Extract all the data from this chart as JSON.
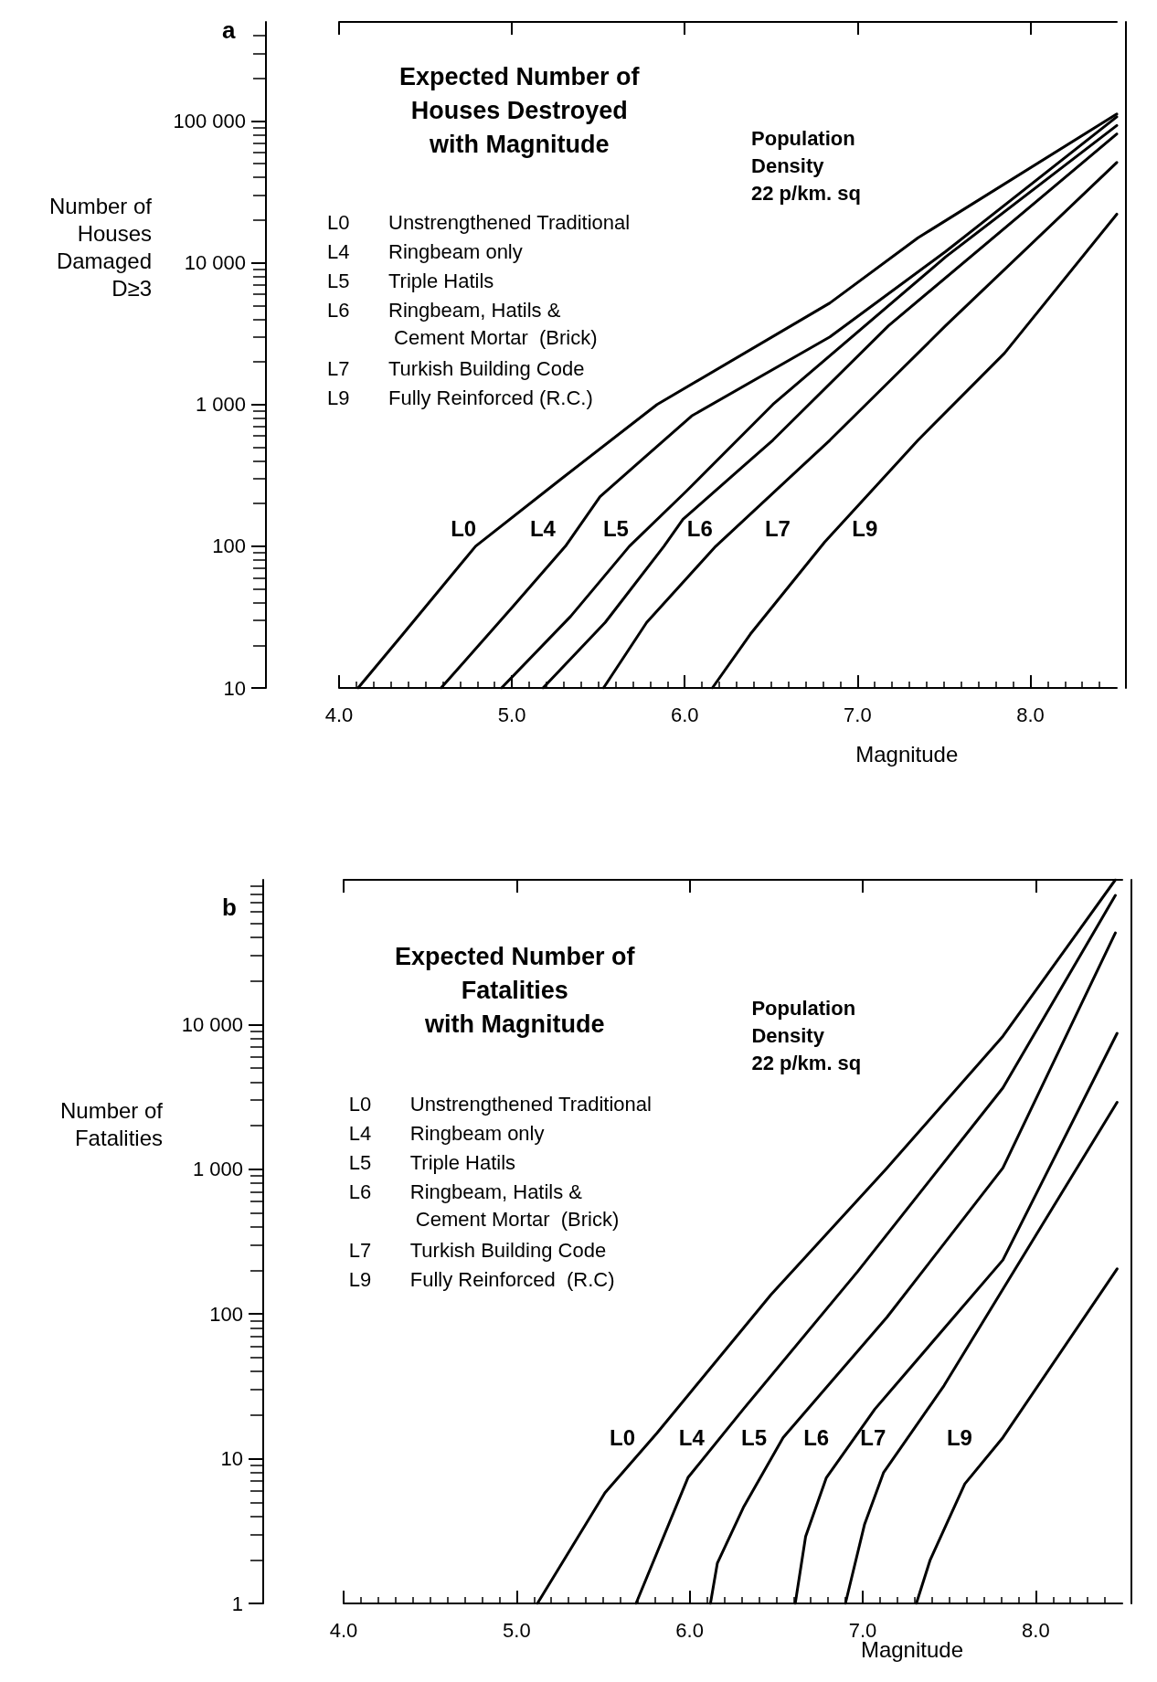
{
  "chart_data": [
    {
      "type": "line",
      "title": "Expected Number of\nHouses Destroyed\nwith Magnitude",
      "xlabel": "Magnitude",
      "ylabel": "Number of\nHouses\nDamaged\nD≥3",
      "log": "y",
      "grid": false,
      "marker": "none",
      "line_style": "solid",
      "xlim": [
        4,
        8.5
      ],
      "ylim": [
        10,
        500000
      ],
      "xticks": [
        {
          "value": 4,
          "label": "4.0"
        },
        {
          "value": 5,
          "label": "5.0"
        },
        {
          "value": 6,
          "label": "6.0"
        },
        {
          "value": 7,
          "label": "7.0"
        },
        {
          "value": 8,
          "label": "8.0"
        }
      ],
      "yticks": [
        10,
        100,
        {
          "value": 1000,
          "label": "1 000"
        },
        {
          "value": 10000,
          "label": "10 000"
        },
        {
          "value": 100000,
          "label": "100 000"
        }
      ],
      "series": [
        {
          "color": "#000000",
          "x": [
            4.11,
            4.37,
            4.79,
            5.28,
            5.84,
            6.84,
            7.35,
            8.5
          ],
          "values": [
            10,
            24,
            100,
            295,
            1000,
            5200,
            15000,
            112000
          ]
        },
        {
          "color": "#000000",
          "x": [
            4.59,
            5.01,
            5.31,
            5.51,
            6.04,
            6.84,
            7.51,
            8.5
          ],
          "values": [
            10,
            38,
            100,
            224,
            830,
            3000,
            12000,
            107000
          ]
        },
        {
          "color": "#000000",
          "x": [
            4.94,
            5.34,
            5.68,
            6.01,
            6.51,
            7.51,
            8.5
          ],
          "values": [
            10,
            32,
            100,
            245,
            1000,
            11000,
            93000
          ]
        },
        {
          "color": "#000000",
          "x": [
            5.18,
            5.54,
            5.88,
            5.99,
            6.51,
            7.18,
            8.5
          ],
          "values": [
            10,
            29,
            100,
            155,
            560,
            3600,
            81000
          ]
        },
        {
          "color": "#000000",
          "x": [
            5.53,
            5.78,
            6.18,
            6.84,
            7.51,
            8.5
          ],
          "values": [
            10,
            29,
            100,
            560,
            3600,
            51000
          ]
        },
        {
          "color": "#000000",
          "x": [
            6.16,
            6.38,
            6.81,
            7.35,
            7.85,
            8.5
          ],
          "values": [
            10,
            24,
            107,
            560,
            2300,
            22000
          ]
        }
      ],
      "annotations": [
        "a",
        "Population\nDensity\n22 p/km. sq",
        "L0 Unstrengthened Traditional",
        "L4 Ringbeam only",
        "L5 Triple Hatils",
        "L6 Ringbeam, Hatils &\n Cement Mortar  (Brick)",
        "L7 Turkish Building Code",
        "L9 Fully Reinforced (R.C.)",
        "L0",
        "L4",
        "L5",
        "L6",
        "L7",
        "L9"
      ]
    },
    {
      "type": "line",
      "title": "Expected Number of\nFatalities\nwith Magnitude",
      "xlabel": "Magnitude",
      "ylabel": "Number of\nFatalities",
      "log": "y",
      "grid": false,
      "marker": "none",
      "line_style": "solid",
      "xlim": [
        4,
        8.5
      ],
      "ylim": [
        1,
        100000
      ],
      "xticks": [
        {
          "value": 4,
          "label": "4.0"
        },
        {
          "value": 5,
          "label": "5.0"
        },
        {
          "value": 6,
          "label": "6.0"
        },
        {
          "value": 7,
          "label": "7.0"
        },
        {
          "value": 8,
          "label": "8.0"
        }
      ],
      "yticks": [
        1,
        10,
        100,
        {
          "value": 1000,
          "label": "1 000"
        },
        {
          "value": 10000,
          "label": "10 000"
        }
      ],
      "series": [
        {
          "color": "#000000",
          "x": [
            5.12,
            5.51,
            5.81,
            6.47,
            7.14,
            7.81,
            8.46
          ],
          "values": [
            1,
            5.8,
            15,
            136,
            1020,
            8300,
            100000
          ]
        },
        {
          "color": "#000000",
          "x": [
            5.69,
            5.99,
            6.31,
            6.97,
            7.81,
            8.46
          ],
          "values": [
            1,
            7.4,
            22,
            196,
            3650,
            78000
          ]
        },
        {
          "color": "#000000",
          "x": [
            6.12,
            6.16,
            6.31,
            6.54,
            7.14,
            7.81,
            8.46
          ],
          "values": [
            1,
            1.9,
            4.6,
            14,
            95,
            1020,
            43000
          ]
        },
        {
          "color": "#000000",
          "x": [
            6.61,
            6.67,
            6.79,
            7.07,
            7.81,
            8.47
          ],
          "values": [
            1,
            2.9,
            7.4,
            22,
            236,
            8700
          ]
        },
        {
          "color": "#000000",
          "x": [
            6.9,
            7.01,
            7.12,
            7.47,
            8.47
          ],
          "values": [
            1,
            3.5,
            8,
            32,
            2900
          ]
        },
        {
          "color": "#000000",
          "x": [
            7.31,
            7.39,
            7.59,
            7.81,
            8.47
          ],
          "values": [
            1,
            2,
            6.7,
            14,
            205
          ]
        }
      ],
      "annotations": [
        "b",
        "Population\nDensity\n22 p/km. sq",
        "L0 Unstrengthened Traditional",
        "L4 Ringbeam only",
        "L5 Triple Hatils",
        "L6 Ringbeam, Hatils &\n Cement Mortar  (Brick)",
        "L7 Turkish Building Code",
        "L9 Fully Reinforced  (R.C)",
        "L0",
        "L4",
        "L5",
        "L6",
        "L7",
        "L9"
      ]
    }
  ]
}
